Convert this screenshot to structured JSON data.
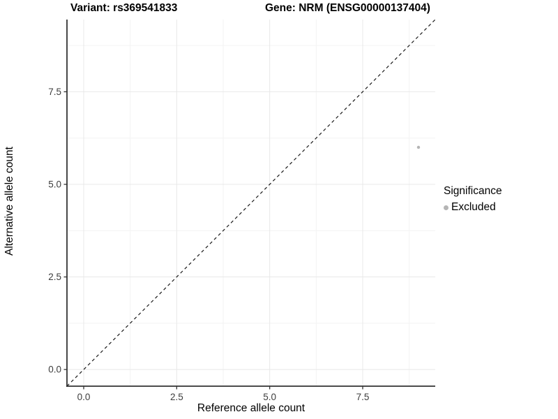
{
  "chart_data": {
    "type": "scatter",
    "title_left": "Variant: rs369541833",
    "title_right": "Gene: NRM (ENSG00000137404)",
    "xlabel": "Reference allele count",
    "ylabel": "Alternative allele count",
    "xlim": [
      -0.45,
      9.45
    ],
    "ylim": [
      -0.45,
      9.45
    ],
    "x_ticks": [
      {
        "value": 0,
        "label": "0.0"
      },
      {
        "value": 2.5,
        "label": "2.5"
      },
      {
        "value": 5,
        "label": "5.0"
      },
      {
        "value": 7.5,
        "label": "7.5"
      }
    ],
    "y_ticks": [
      {
        "value": 0,
        "label": "0.0"
      },
      {
        "value": 2.5,
        "label": "2.5"
      },
      {
        "value": 5,
        "label": "5.0"
      },
      {
        "value": 7.5,
        "label": "7.5"
      }
    ],
    "minor_tick_values": [
      1.25,
      3.75,
      6.25,
      8.75
    ],
    "grid": true,
    "reference_line": {
      "kind": "identity",
      "style": "dashed",
      "color": "#1a1a1a"
    },
    "series": [
      {
        "name": "Excluded",
        "color": "#b5b5b5",
        "points": [
          {
            "x": 9,
            "y": 6
          }
        ]
      }
    ],
    "legend": {
      "position": "right",
      "title": "Significance",
      "items": [
        {
          "label": "Excluded",
          "color": "#b5b5b5"
        }
      ]
    }
  },
  "colors": {
    "background": "#ffffff",
    "axis_line": "#333333",
    "tick_mark": "#333333",
    "tick_label": "#3d3d3d",
    "grid_major": "#e8e8e8",
    "grid_minor": "#f3f3f3",
    "excluded_point": "#b5b5b5",
    "dashed_line": "#1a1a1a"
  }
}
